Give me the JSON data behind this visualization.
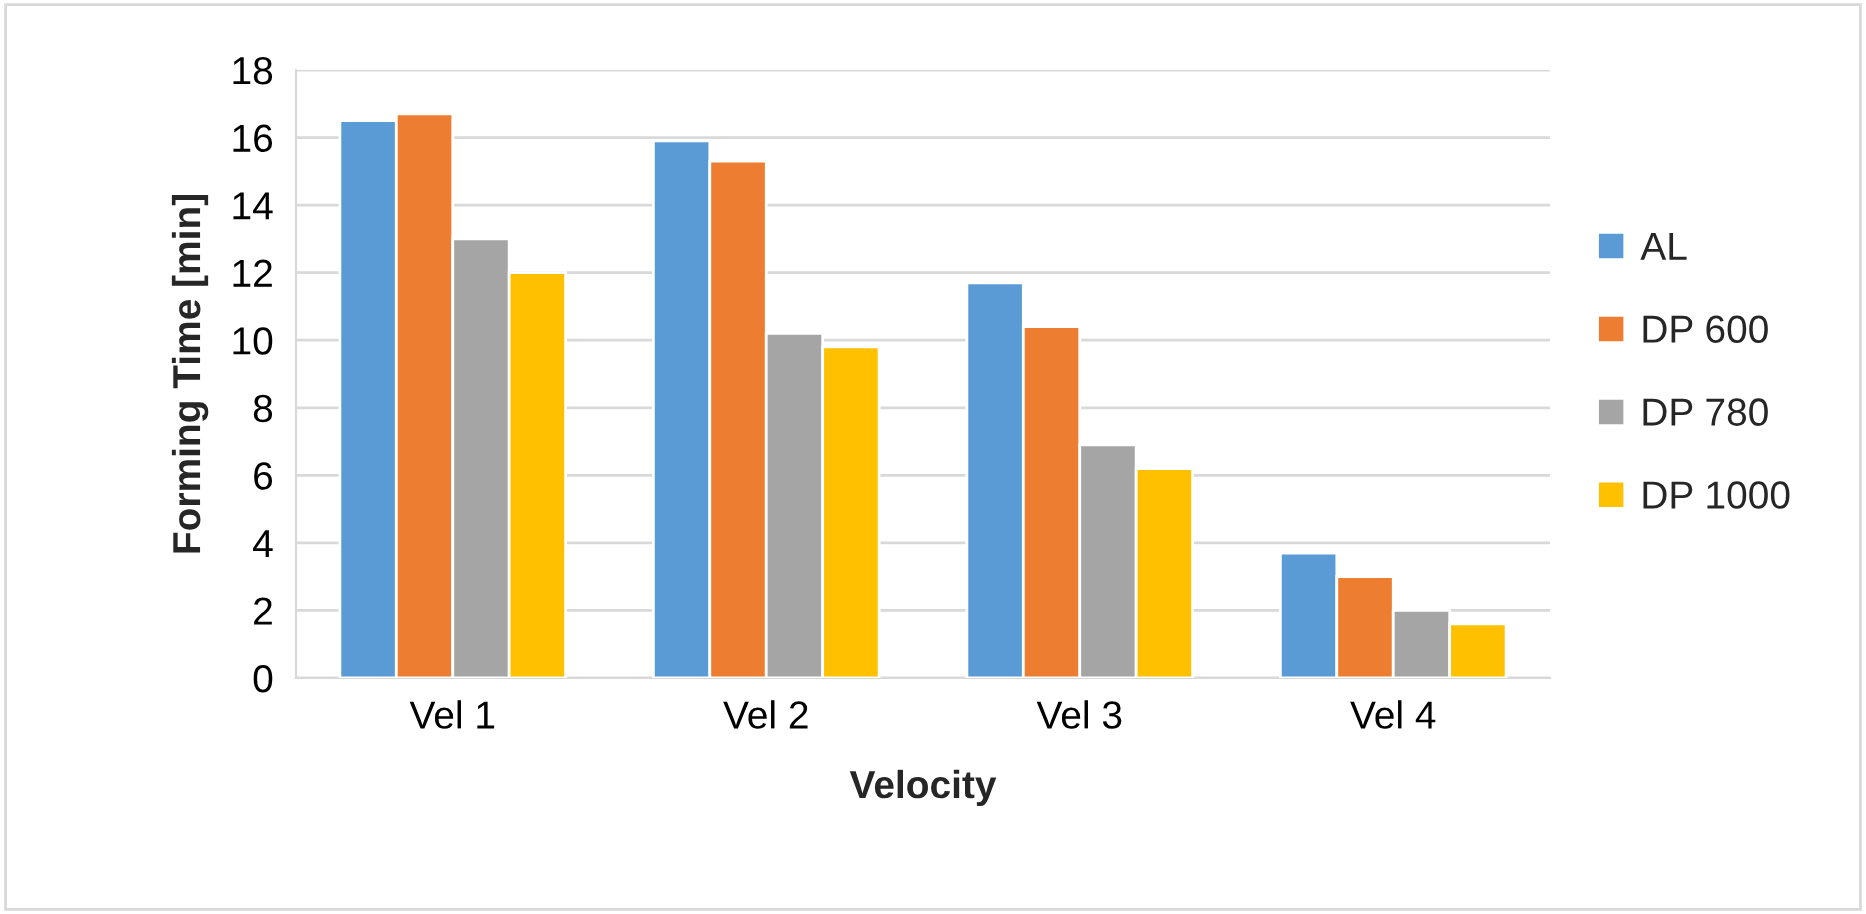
{
  "chart_data": {
    "type": "bar",
    "xlabel": "Velocity",
    "ylabel": "Forming Time [min]",
    "categories": [
      "Vel 1",
      "Vel 2",
      "Vel 3",
      "Vel 4"
    ],
    "series": [
      {
        "name": "AL",
        "color": "#5b9bd5",
        "values": [
          16.5,
          15.9,
          11.7,
          3.7
        ]
      },
      {
        "name": "DP 600",
        "color": "#ed7d31",
        "values": [
          16.7,
          15.3,
          10.4,
          3.0
        ]
      },
      {
        "name": "DP 780",
        "color": "#a5a5a5",
        "values": [
          13.0,
          10.2,
          6.9,
          2.0
        ]
      },
      {
        "name": "DP 1000",
        "color": "#ffc000",
        "values": [
          12.0,
          9.8,
          6.2,
          1.6
        ]
      }
    ],
    "ylim": [
      0,
      18
    ],
    "yticks": [
      0,
      2,
      4,
      6,
      8,
      10,
      12,
      14,
      16,
      18
    ],
    "grid": "y",
    "legend": "right"
  }
}
